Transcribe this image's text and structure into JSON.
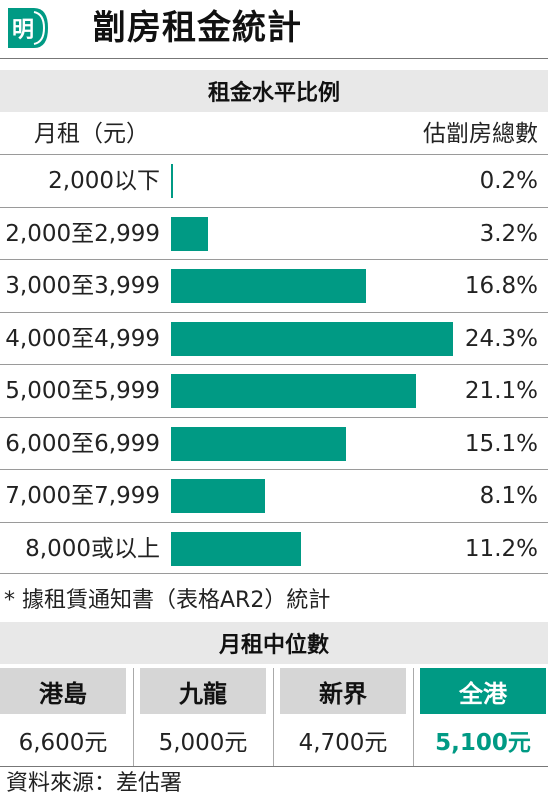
{
  "header": {
    "logo_char": "明",
    "title": "劏房租金統計"
  },
  "rent_section": {
    "title": "租金水平比例",
    "left_head": "月租（元）",
    "right_head": "估劏房總數"
  },
  "chart_data": {
    "type": "bar",
    "orientation": "horizontal",
    "title": "租金水平比例",
    "xlabel": "估劏房總數",
    "ylabel": "月租（元）",
    "categories": [
      "2,000以下",
      "2,000至2,999",
      "3,000至3,999",
      "4,000至4,999",
      "5,000至5,999",
      "6,000至6,999",
      "7,000至7,999",
      "8,000或以上"
    ],
    "values": [
      0.2,
      3.2,
      16.8,
      24.3,
      21.1,
      15.1,
      8.1,
      11.2
    ],
    "value_labels": [
      "0.2%",
      "3.2%",
      "16.8%",
      "24.3%",
      "21.1%",
      "15.1%",
      "8.1%",
      "11.2%"
    ],
    "unit": "%",
    "xlim": [
      0,
      24.3
    ],
    "grid": false,
    "bar_color": "#009a84"
  },
  "footnote": "* 據租賃通知書（表格AR2）統計",
  "median_section": {
    "title": "月租中位數",
    "regions": [
      {
        "name": "港島",
        "value": "6,600元"
      },
      {
        "name": "九龍",
        "value": "5,000元"
      },
      {
        "name": "新界",
        "value": "4,700元"
      },
      {
        "name": "全港",
        "value": "5,100元"
      }
    ]
  },
  "source": "資料來源：差估署",
  "colors": {
    "accent": "#009a84",
    "section_bg": "#e8e8e8",
    "region_bg": "#d6d6d6"
  }
}
